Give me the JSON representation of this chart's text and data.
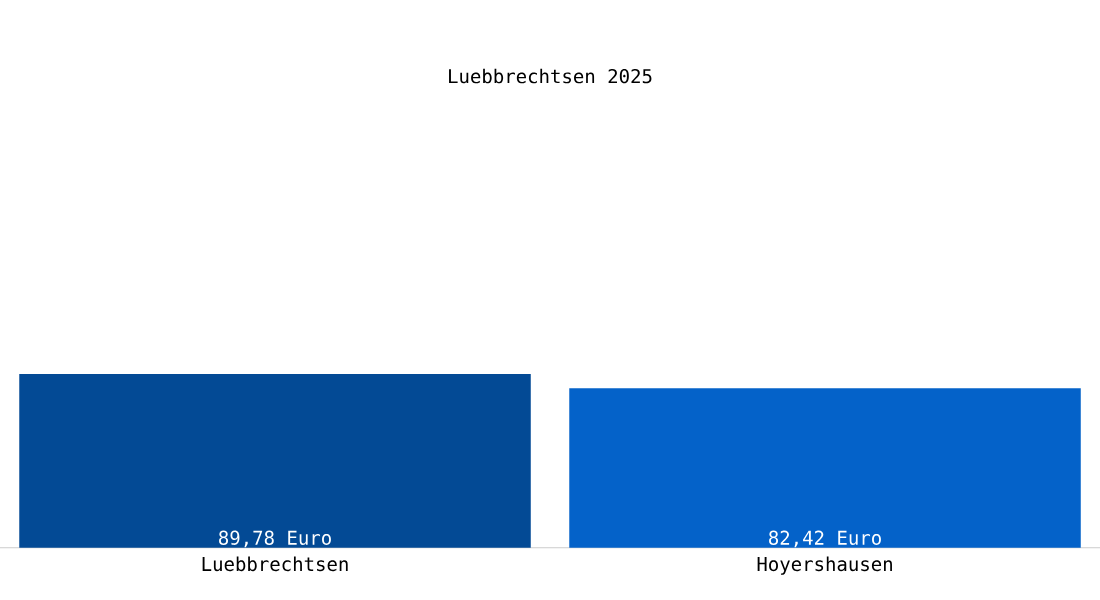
{
  "chart_data": {
    "type": "bar",
    "title": "Luebbrechtsen 2025",
    "categories": [
      "Luebbrechtsen",
      "Hoyershausen"
    ],
    "values": [
      89.78,
      82.42
    ],
    "value_labels": [
      "89,78 Euro",
      "82,42 Euro"
    ],
    "colors": [
      "#034a95",
      "#0462c9"
    ]
  }
}
